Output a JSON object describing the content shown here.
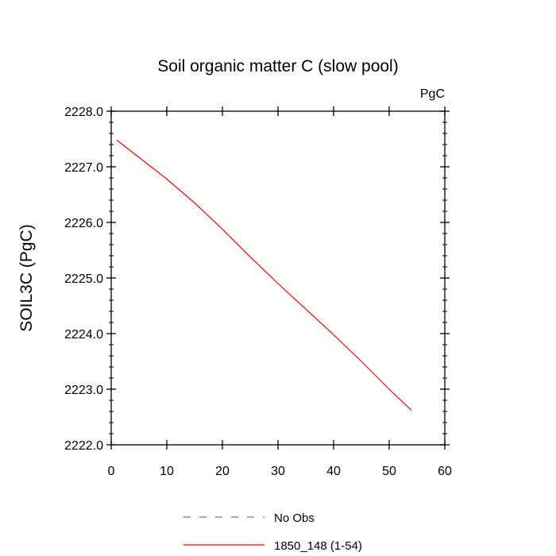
{
  "chart_data": {
    "type": "line",
    "title": "Soil organic matter C (slow pool)",
    "units": "PgC",
    "xlabel": "",
    "ylabel": "SOIL3C  (PgC)",
    "xlim": [
      0,
      60
    ],
    "ylim": [
      2222.0,
      2228.0
    ],
    "xticks": [
      "0",
      "10",
      "20",
      "30",
      "40",
      "50",
      "60"
    ],
    "yticks": [
      "2222.0",
      "2223.0",
      "2224.0",
      "2225.0",
      "2226.0",
      "2227.0",
      "2228.0"
    ],
    "grid": false,
    "legend_position": "bottom",
    "series": [
      {
        "name": "No Obs",
        "color": "#6b6bf0",
        "style": "dashed",
        "x": [],
        "y": []
      },
      {
        "name": "1850_148 (1-54)",
        "color": "#ff0000",
        "style": "solid",
        "x": [
          1,
          5,
          10,
          15,
          20,
          25,
          30,
          35,
          40,
          45,
          50,
          54
        ],
        "y": [
          2227.48,
          2227.17,
          2226.78,
          2226.35,
          2225.88,
          2225.38,
          2224.9,
          2224.44,
          2223.98,
          2223.5,
          2223.0,
          2222.62
        ]
      }
    ]
  }
}
